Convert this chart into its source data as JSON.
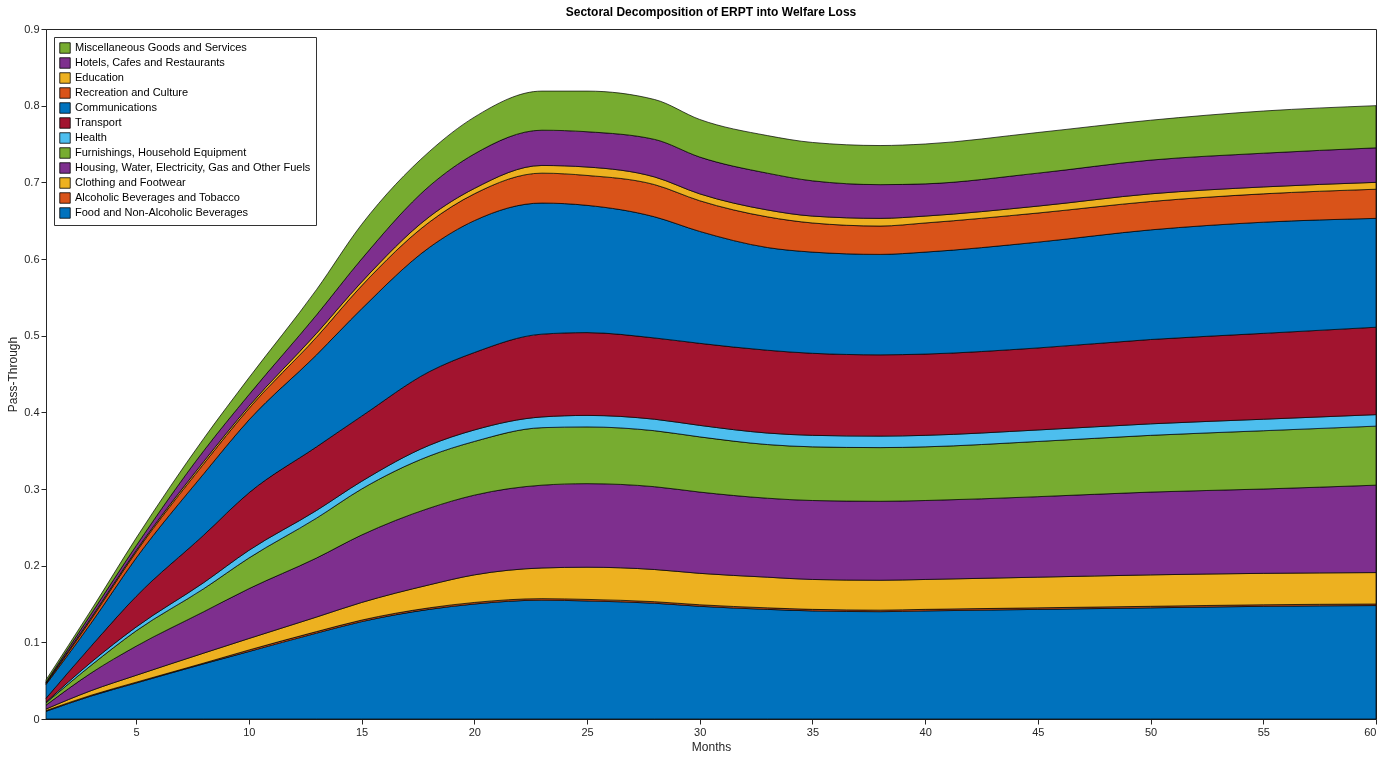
{
  "chart_data": {
    "type": "area",
    "stacked": true,
    "title": "Sectoral Decomposition of ERPT into Welfare Loss",
    "xlabel": "Months",
    "ylabel": "Pass-Through",
    "x": [
      1,
      3,
      5,
      8,
      10,
      13,
      15,
      18,
      20,
      23,
      25,
      28,
      30,
      33,
      35,
      38,
      40,
      45,
      50,
      55,
      60
    ],
    "xlim": [
      1,
      60
    ],
    "xticks": [
      5,
      10,
      15,
      20,
      25,
      30,
      35,
      40,
      45,
      50,
      55,
      60
    ],
    "ylim": [
      0,
      0.9
    ],
    "yticks": [
      0,
      0.1,
      0.2,
      0.3,
      0.4,
      0.5,
      0.6,
      0.7,
      0.8,
      0.9
    ],
    "grid": false,
    "legend": "top left",
    "series": [
      {
        "name": "Food and Non-Alcoholic Beverages",
        "color": "#0072bd",
        "values": [
          0.01,
          0.03,
          0.047,
          0.072,
          0.088,
          0.112,
          0.127,
          0.143,
          0.15,
          0.155,
          0.154,
          0.151,
          0.147,
          0.143,
          0.141,
          0.14,
          0.141,
          0.143,
          0.145,
          0.147,
          0.148
        ]
      },
      {
        "name": "Alcoholic Beverages and Tobacco",
        "color": "#d95319",
        "values": [
          0.001,
          0.001,
          0.001,
          0.001,
          0.002,
          0.002,
          0.002,
          0.002,
          0.002,
          0.002,
          0.002,
          0.002,
          0.002,
          0.002,
          0.002,
          0.002,
          0.002,
          0.002,
          0.002,
          0.002,
          0.002
        ]
      },
      {
        "name": "Clothing and Footwear",
        "color": "#edb120",
        "values": [
          0.002,
          0.006,
          0.009,
          0.013,
          0.015,
          0.019,
          0.023,
          0.03,
          0.036,
          0.04,
          0.042,
          0.042,
          0.041,
          0.04,
          0.039,
          0.039,
          0.039,
          0.04,
          0.041,
          0.041,
          0.041
        ]
      },
      {
        "name": "Housing, Water, Electricity, Gas and Other Fuels",
        "color": "#7e2f8e",
        "values": [
          0.005,
          0.023,
          0.038,
          0.054,
          0.065,
          0.077,
          0.088,
          0.1,
          0.104,
          0.108,
          0.109,
          0.108,
          0.106,
          0.103,
          0.103,
          0.103,
          0.103,
          0.105,
          0.108,
          0.11,
          0.114
        ]
      },
      {
        "name": "Furnishings, Household Equipment",
        "color": "#77ac30",
        "values": [
          0.003,
          0.01,
          0.02,
          0.03,
          0.04,
          0.052,
          0.06,
          0.068,
          0.07,
          0.075,
          0.074,
          0.073,
          0.072,
          0.07,
          0.07,
          0.07,
          0.07,
          0.072,
          0.074,
          0.076,
          0.077
        ]
      },
      {
        "name": "Health",
        "color": "#4dbeee",
        "values": [
          0.001,
          0.004,
          0.005,
          0.008,
          0.01,
          0.01,
          0.01,
          0.014,
          0.015,
          0.014,
          0.015,
          0.015,
          0.015,
          0.015,
          0.015,
          0.015,
          0.015,
          0.015,
          0.015,
          0.015,
          0.015
        ]
      },
      {
        "name": "Transport",
        "color": "#a2142f",
        "values": [
          0.005,
          0.021,
          0.04,
          0.062,
          0.075,
          0.083,
          0.085,
          0.096,
          0.101,
          0.108,
          0.108,
          0.106,
          0.107,
          0.108,
          0.107,
          0.106,
          0.106,
          0.107,
          0.11,
          0.112,
          0.114
        ]
      },
      {
        "name": "Communications",
        "color": "#0072bd",
        "values": [
          0.018,
          0.03,
          0.05,
          0.08,
          0.095,
          0.12,
          0.14,
          0.162,
          0.172,
          0.171,
          0.166,
          0.158,
          0.146,
          0.134,
          0.132,
          0.131,
          0.133,
          0.138,
          0.143,
          0.145,
          0.142
        ]
      },
      {
        "name": "Recreation and Culture",
        "color": "#d95319",
        "values": [
          0.001,
          0.005,
          0.008,
          0.013,
          0.015,
          0.023,
          0.03,
          0.033,
          0.035,
          0.039,
          0.039,
          0.042,
          0.04,
          0.04,
          0.038,
          0.037,
          0.038,
          0.038,
          0.037,
          0.037,
          0.038
        ]
      },
      {
        "name": "Education",
        "color": "#edb120",
        "values": [
          0.001,
          0.002,
          0.002,
          0.003,
          0.003,
          0.005,
          0.005,
          0.007,
          0.007,
          0.01,
          0.011,
          0.01,
          0.009,
          0.009,
          0.009,
          0.01,
          0.009,
          0.009,
          0.01,
          0.009,
          0.009
        ]
      },
      {
        "name": "Hotels, Cafes and Restaurants",
        "color": "#7e2f8e",
        "values": [
          0.001,
          0.005,
          0.006,
          0.014,
          0.015,
          0.024,
          0.03,
          0.04,
          0.045,
          0.046,
          0.046,
          0.049,
          0.048,
          0.048,
          0.046,
          0.044,
          0.042,
          0.043,
          0.044,
          0.044,
          0.045
        ]
      },
      {
        "name": "Miscellaneous Goods and Services",
        "color": "#77ac30",
        "values": [
          0.003,
          0.005,
          0.01,
          0.016,
          0.022,
          0.033,
          0.045,
          0.045,
          0.048,
          0.051,
          0.053,
          0.052,
          0.049,
          0.049,
          0.05,
          0.051,
          0.052,
          0.053,
          0.052,
          0.055,
          0.055
        ]
      }
    ]
  }
}
